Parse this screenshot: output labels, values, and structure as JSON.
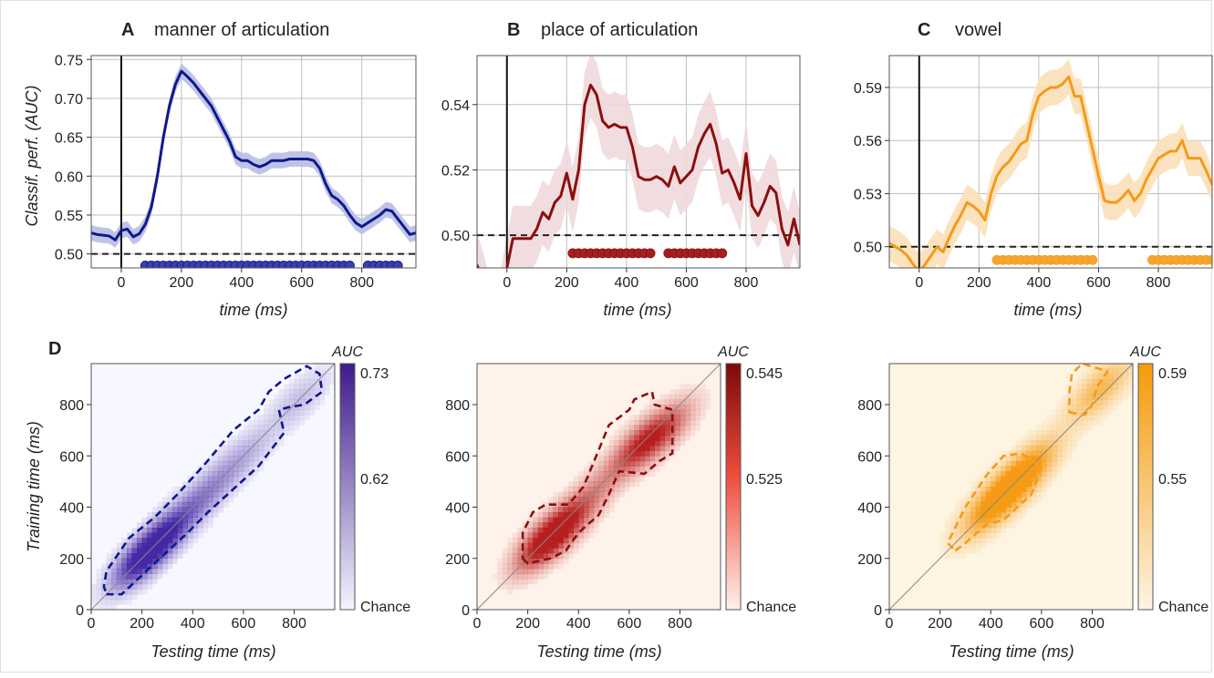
{
  "panel_letters": [
    "A",
    "B",
    "C",
    "D"
  ],
  "colors": {
    "manner": "#0d1a8c",
    "manner_band": "#b9bde6",
    "manner_dot": "#3a3fae",
    "place": "#8b0f0f",
    "place_band": "#efd9db",
    "place_dot": "#a51f1f",
    "vowel": "#f59a1a",
    "vowel_band": "#fbe0b8",
    "vowel_dot": "#f5a630",
    "grid": "#c0c0c0",
    "chance_line": "#222222"
  },
  "chart_data": [
    {
      "type": "line",
      "panel": "A",
      "title": "manner of articulation",
      "xlabel": "time (ms)",
      "ylabel": "Classif. perf. (AUC)",
      "xlim": [
        -100,
        980
      ],
      "ylim": [
        0.482,
        0.755
      ],
      "xticks": [
        0,
        200,
        400,
        600,
        800
      ],
      "yticks": [
        0.5,
        0.55,
        0.6,
        0.65,
        0.7,
        0.75
      ],
      "ytick_labels": [
        "0.50",
        "0.55",
        "0.60",
        "0.65",
        "0.70",
        "0.75"
      ],
      "chance": 0.5,
      "grid": true,
      "series": [
        {
          "color_key": "manner",
          "x": [
            -100,
            -80,
            -60,
            -40,
            -20,
            0,
            20,
            40,
            60,
            80,
            100,
            120,
            140,
            160,
            180,
            200,
            220,
            240,
            260,
            280,
            300,
            320,
            340,
            360,
            380,
            400,
            420,
            440,
            460,
            480,
            500,
            520,
            540,
            560,
            580,
            600,
            620,
            640,
            660,
            680,
            700,
            720,
            740,
            760,
            780,
            800,
            820,
            840,
            860,
            880,
            900,
            920,
            940,
            960,
            980
          ],
          "y": [
            0.527,
            0.525,
            0.524,
            0.523,
            0.518,
            0.53,
            0.532,
            0.522,
            0.526,
            0.538,
            0.56,
            0.6,
            0.65,
            0.69,
            0.718,
            0.735,
            0.728,
            0.72,
            0.71,
            0.7,
            0.69,
            0.675,
            0.66,
            0.645,
            0.625,
            0.62,
            0.62,
            0.615,
            0.612,
            0.615,
            0.62,
            0.62,
            0.62,
            0.622,
            0.622,
            0.622,
            0.622,
            0.62,
            0.61,
            0.59,
            0.575,
            0.57,
            0.562,
            0.55,
            0.54,
            0.535,
            0.54,
            0.545,
            0.55,
            0.557,
            0.555,
            0.545,
            0.535,
            0.525,
            0.527
          ],
          "band": 0.01
        }
      ],
      "significant_x": [
        80,
        100,
        120,
        140,
        160,
        180,
        200,
        220,
        240,
        260,
        280,
        300,
        320,
        340,
        360,
        380,
        400,
        420,
        440,
        460,
        480,
        500,
        520,
        540,
        560,
        580,
        600,
        620,
        640,
        660,
        680,
        700,
        720,
        740,
        760,
        820,
        840,
        860,
        880,
        900,
        920
      ],
      "significant_y": 0.485
    },
    {
      "type": "line",
      "panel": "B",
      "title": "place of articulation",
      "xlabel": "time (ms)",
      "ylabel": "",
      "xlim": [
        -100,
        980
      ],
      "ylim": [
        0.49,
        0.555
      ],
      "xticks": [
        0,
        200,
        400,
        600,
        800
      ],
      "yticks": [
        0.5,
        0.52,
        0.54
      ],
      "ytick_labels": [
        "0.50",
        "0.52",
        "0.54"
      ],
      "chance": 0.5,
      "grid": true,
      "series": [
        {
          "color_key": "place",
          "x": [
            -100,
            -80,
            -60,
            -40,
            -20,
            0,
            20,
            40,
            60,
            80,
            100,
            120,
            140,
            160,
            180,
            200,
            220,
            240,
            260,
            280,
            300,
            320,
            340,
            360,
            380,
            400,
            420,
            440,
            460,
            480,
            500,
            520,
            540,
            560,
            580,
            600,
            620,
            640,
            660,
            680,
            700,
            720,
            740,
            760,
            780,
            800,
            820,
            840,
            860,
            880,
            900,
            920,
            940,
            960,
            980
          ],
          "y": [
            0.491,
            0.485,
            0.478,
            0.475,
            0.48,
            0.49,
            0.499,
            0.499,
            0.499,
            0.499,
            0.502,
            0.507,
            0.505,
            0.51,
            0.512,
            0.519,
            0.511,
            0.52,
            0.54,
            0.546,
            0.543,
            0.535,
            0.533,
            0.534,
            0.533,
            0.533,
            0.527,
            0.518,
            0.517,
            0.517,
            0.518,
            0.517,
            0.515,
            0.521,
            0.516,
            0.518,
            0.52,
            0.527,
            0.531,
            0.534,
            0.528,
            0.519,
            0.52,
            0.516,
            0.511,
            0.525,
            0.509,
            0.506,
            0.51,
            0.515,
            0.513,
            0.502,
            0.497,
            0.505,
            0.497
          ],
          "band": 0.01
        }
      ],
      "significant_x": [
        220,
        240,
        260,
        280,
        300,
        320,
        340,
        360,
        380,
        400,
        420,
        440,
        460,
        480,
        540,
        560,
        580,
        600,
        620,
        640,
        660,
        680,
        700,
        720
      ],
      "significant_y": 0.4945
    },
    {
      "type": "line",
      "panel": "C",
      "title": "vowel",
      "xlabel": "time (ms)",
      "ylabel": "",
      "xlim": [
        -100,
        980
      ],
      "ylim": [
        0.488,
        0.608
      ],
      "xticks": [
        0,
        200,
        400,
        600,
        800
      ],
      "yticks": [
        0.5,
        0.53,
        0.56,
        0.59
      ],
      "ytick_labels": [
        "0.50",
        "0.53",
        "0.56",
        "0.59"
      ],
      "chance": 0.5,
      "grid": true,
      "series": [
        {
          "color_key": "vowel",
          "x": [
            -100,
            -80,
            -60,
            -40,
            -20,
            0,
            20,
            40,
            60,
            80,
            100,
            120,
            140,
            160,
            180,
            200,
            220,
            240,
            260,
            280,
            300,
            320,
            340,
            360,
            380,
            400,
            420,
            440,
            460,
            480,
            500,
            520,
            540,
            560,
            580,
            600,
            620,
            640,
            660,
            680,
            700,
            720,
            740,
            760,
            780,
            800,
            820,
            840,
            860,
            880,
            900,
            920,
            940,
            960,
            980
          ],
          "y": [
            0.502,
            0.5,
            0.498,
            0.495,
            0.49,
            0.486,
            0.49,
            0.495,
            0.5,
            0.497,
            0.505,
            0.512,
            0.518,
            0.525,
            0.523,
            0.52,
            0.515,
            0.53,
            0.54,
            0.545,
            0.548,
            0.553,
            0.558,
            0.56,
            0.575,
            0.585,
            0.588,
            0.59,
            0.59,
            0.592,
            0.596,
            0.585,
            0.585,
            0.57,
            0.555,
            0.54,
            0.526,
            0.525,
            0.525,
            0.528,
            0.532,
            0.526,
            0.53,
            0.538,
            0.544,
            0.55,
            0.552,
            0.554,
            0.554,
            0.56,
            0.55,
            0.55,
            0.55,
            0.543,
            0.535
          ],
          "band": 0.01
        }
      ],
      "significant_x": [
        260,
        280,
        300,
        320,
        340,
        360,
        380,
        400,
        420,
        440,
        460,
        480,
        500,
        520,
        540,
        560,
        580,
        780,
        800,
        820,
        840,
        860,
        880,
        900,
        920,
        940,
        960,
        980
      ],
      "significant_y": 0.4925
    },
    {
      "type": "heatmap",
      "panel": "D",
      "xlabel": "Testing time (ms)",
      "ylabel": "Training time (ms)",
      "xlim": [
        0,
        960
      ],
      "ylim": [
        0,
        960
      ],
      "xticks": [
        0,
        200,
        400,
        600,
        800
      ],
      "yticks": [
        0,
        200,
        400,
        600,
        800
      ],
      "cmaps": [
        {
          "color_key": "manner",
          "colorbar_label": "AUC",
          "colorbar_ticks": [
            "0.73",
            "0.62",
            "Chance"
          ],
          "peaks": [
            [
              200,
              200,
              1.0
            ],
            [
              300,
              300,
              0.7
            ],
            [
              450,
              450,
              0.45
            ],
            [
              600,
              600,
              0.3
            ],
            [
              820,
              820,
              0.25
            ]
          ],
          "contour": [
            [
              60,
              60
            ],
            [
              120,
              60
            ],
            [
              260,
              190
            ],
            [
              380,
              300
            ],
            [
              460,
              380
            ],
            [
              560,
              470
            ],
            [
              660,
              560
            ],
            [
              760,
              690
            ],
            [
              740,
              780
            ],
            [
              780,
              790
            ],
            [
              840,
              800
            ],
            [
              910,
              850
            ],
            [
              900,
              920
            ],
            [
              850,
              950
            ],
            [
              760,
              900
            ],
            [
              700,
              850
            ],
            [
              660,
              780
            ],
            [
              560,
              700
            ],
            [
              450,
              570
            ],
            [
              340,
              450
            ],
            [
              250,
              360
            ],
            [
              150,
              280
            ],
            [
              60,
              150
            ],
            [
              50,
              90
            ]
          ]
        },
        {
          "color_key": "place",
          "colorbar_label": "AUC",
          "colorbar_ticks": [
            "0.545",
            "0.525",
            "Chance"
          ],
          "peaks": [
            [
              270,
              270,
              1.0
            ],
            [
              350,
              330,
              0.55
            ],
            [
              640,
              640,
              0.75
            ],
            [
              740,
              700,
              0.55
            ],
            [
              460,
              460,
              0.3
            ]
          ],
          "contour": [
            [
              180,
              200
            ],
            [
              200,
              180
            ],
            [
              290,
              200
            ],
            [
              350,
              230
            ],
            [
              400,
              300
            ],
            [
              480,
              370
            ],
            [
              520,
              450
            ],
            [
              560,
              540
            ],
            [
              660,
              530
            ],
            [
              720,
              580
            ],
            [
              770,
              610
            ],
            [
              770,
              780
            ],
            [
              700,
              800
            ],
            [
              690,
              850
            ],
            [
              620,
              820
            ],
            [
              600,
              780
            ],
            [
              520,
              720
            ],
            [
              470,
              600
            ],
            [
              420,
              480
            ],
            [
              360,
              410
            ],
            [
              270,
              410
            ],
            [
              220,
              380
            ],
            [
              180,
              300
            ]
          ]
        },
        {
          "color_key": "vowel",
          "colorbar_label": "AUC",
          "colorbar_ticks": [
            "0.59",
            "0.55",
            "Chance"
          ],
          "peaks": [
            [
              480,
              480,
              1.0
            ],
            [
              390,
              390,
              0.7
            ],
            [
              830,
              860,
              0.65
            ],
            [
              560,
              560,
              0.6
            ]
          ],
          "contour": [
            [
              260,
              230
            ],
            [
              300,
              260
            ],
            [
              380,
              330
            ],
            [
              450,
              350
            ],
            [
              560,
              450
            ],
            [
              580,
              500
            ],
            [
              600,
              560
            ],
            [
              520,
              610
            ],
            [
              450,
              600
            ],
            [
              380,
              520
            ],
            [
              300,
              400
            ],
            [
              250,
              300
            ],
            [
              230,
              260
            ]
          ],
          "contour2": [
            [
              710,
              770
            ],
            [
              770,
              760
            ],
            [
              800,
              800
            ],
            [
              820,
              870
            ],
            [
              860,
              930
            ],
            [
              760,
              960
            ],
            [
              720,
              920
            ],
            [
              710,
              850
            ]
          ]
        }
      ]
    }
  ]
}
